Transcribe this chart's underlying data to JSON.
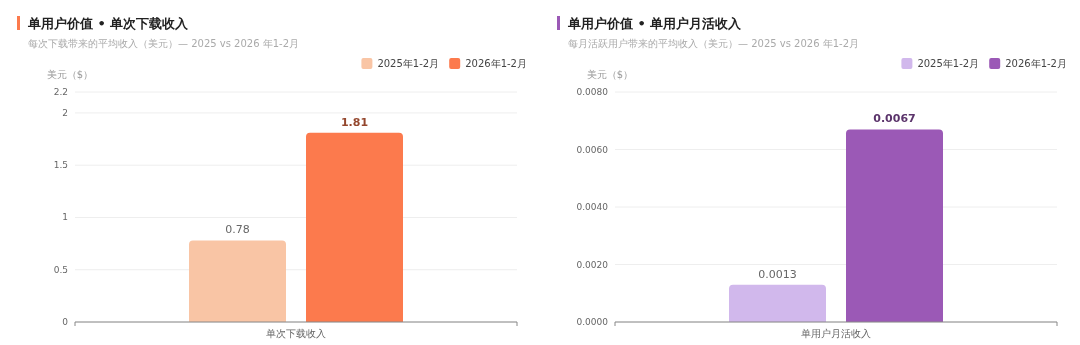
{
  "chart_data": [
    {
      "type": "bar",
      "title": "单用户价值 • 单次下载收入",
      "subtitle": "每次下载带来的平均收入（美元）— 2025 vs 2026 年1-2月",
      "ylabel": "美元（$）",
      "categories": [
        "单次下载收入"
      ],
      "series": [
        {
          "name": "2025年1-2月",
          "color": "#f9c5a5",
          "values": [
            0.78
          ]
        },
        {
          "name": "2026年1-2月",
          "color": "#fc7a4d",
          "values": [
            1.81
          ]
        }
      ],
      "ylim": [
        0,
        2.2
      ],
      "yticks": [
        0,
        0.5,
        1,
        1.5,
        2,
        2.2
      ],
      "grid": "y",
      "legend": "top right",
      "data_labels": true
    },
    {
      "type": "bar",
      "title": "单用户价值 • 单用户月活收入",
      "subtitle": "每月活跃用户带来的平均收入（美元）— 2025 vs 2026 年1-2月",
      "ylabel": "美元（$）",
      "categories": [
        "单用户月活收入"
      ],
      "series": [
        {
          "name": "2025年1-2月",
          "color": "#d1b8ec",
          "values": [
            0.0013
          ]
        },
        {
          "name": "2026年1-2月",
          "color": "#9b59b6",
          "values": [
            0.0067
          ]
        }
      ],
      "ylim": [
        0,
        0.008
      ],
      "yticks": [
        {
          "value": 0,
          "label": "0.0000"
        },
        {
          "value": 0.002,
          "label": "0.0020"
        },
        {
          "value": 0.004,
          "label": "0.0040"
        },
        {
          "value": 0.006,
          "label": "0.0060"
        },
        {
          "value": 0.008,
          "label": "0.0080"
        }
      ],
      "grid": "y",
      "legend": "top right",
      "data_labels": true
    }
  ]
}
